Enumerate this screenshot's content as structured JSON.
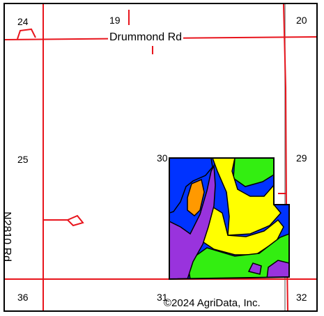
{
  "map": {
    "sections": {
      "s24": "24",
      "s19": "19",
      "s20": "20",
      "s25": "25",
      "s30": "30",
      "s29": "29",
      "s36": "36",
      "s31": "31",
      "s32": "32"
    },
    "roads": {
      "horizontal": "Drummond Rd",
      "vertical": "N2810 Rd"
    },
    "copyright": "©2024 AgriData, Inc.",
    "colors": {
      "road": "#e8141c",
      "blue": "#0033ff",
      "green": "#33ee11",
      "yellow": "#ffff00",
      "purple": "#9933dd",
      "orange": "#ff9900",
      "boundary": "#000000",
      "section_line": "#888888"
    }
  }
}
